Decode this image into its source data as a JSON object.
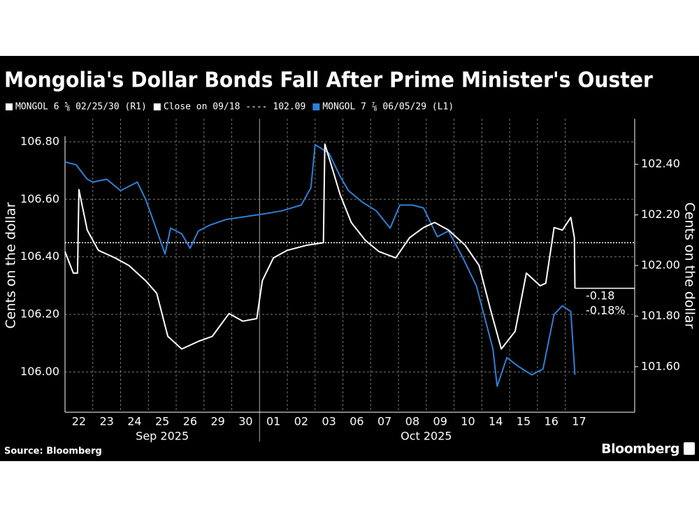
{
  "chart_data": {
    "type": "line",
    "title": "Mongolia's Dollar Bonds Fall After Prime Minister's Ouster",
    "y_label": "Cents on the dollar",
    "y2_label": "Cents on the dollar",
    "source": "Source: Bloomberg",
    "brand": "Bloomberg",
    "xlim": [
      0,
      20.5
    ],
    "xticks": [
      {
        "value": 0.5,
        "label": "22"
      },
      {
        "value": 1.5,
        "label": "23"
      },
      {
        "value": 2.5,
        "label": "24"
      },
      {
        "value": 3.5,
        "label": "25"
      },
      {
        "value": 4.5,
        "label": "26"
      },
      {
        "value": 5.5,
        "label": "29"
      },
      {
        "value": 6.5,
        "label": "30"
      },
      {
        "value": 7.5,
        "label": "01"
      },
      {
        "value": 8.5,
        "label": "02"
      },
      {
        "value": 9.5,
        "label": "03"
      },
      {
        "value": 10.5,
        "label": "06"
      },
      {
        "value": 11.5,
        "label": "07"
      },
      {
        "value": 12.5,
        "label": "08"
      },
      {
        "value": 13.5,
        "label": "09"
      },
      {
        "value": 14.5,
        "label": "10"
      },
      {
        "value": 15.5,
        "label": "14"
      },
      {
        "value": 16.5,
        "label": "15"
      },
      {
        "value": 17.5,
        "label": "16"
      },
      {
        "value": 18.5,
        "label": "17"
      }
    ],
    "xgrid": [
      1,
      2,
      3,
      4,
      5,
      6,
      8,
      9,
      10,
      11,
      12,
      13,
      14,
      15,
      16,
      17,
      18
    ],
    "x_groups": [
      {
        "label": "Sep 2025",
        "from": 0,
        "to": 7
      },
      {
        "label": "Oct 2025",
        "from": 7,
        "to": 19
      }
    ],
    "ylim": [
      105.86,
      106.88
    ],
    "yticks": [
      {
        "value": 106,
        "label": "106.00"
      },
      {
        "value": 106.2,
        "label": "106.20"
      },
      {
        "value": 106.4,
        "label": "106.40"
      },
      {
        "value": 106.6,
        "label": "106.60"
      },
      {
        "value": 106.8,
        "label": "106.80"
      }
    ],
    "y2lim": [
      101.42,
      102.58
    ],
    "y2ticks": [
      {
        "value": 101.6,
        "label": "101.60"
      },
      {
        "value": 101.8,
        "label": "101.80"
      },
      {
        "value": 102,
        "label": "102.00"
      },
      {
        "value": 102.2,
        "label": "102.20"
      },
      {
        "value": 102.4,
        "label": "102.40"
      }
    ],
    "grid": true,
    "series": [
      {
        "name": "MONGOL 6 ⅝ 02/25/30 (R1)",
        "color": "#ffffff",
        "axis": "y2",
        "x": [
          0,
          0.3,
          0.45,
          0.5,
          0.8,
          1.2,
          1.8,
          2.3,
          2.9,
          3.3,
          3.7,
          4.2,
          4.8,
          5.3,
          5.9,
          6.4,
          6.9,
          7.1,
          7.5,
          8.0,
          8.7,
          9.3,
          9.35,
          9.6,
          9.9,
          10.3,
          10.8,
          11.3,
          11.9,
          12.4,
          12.9,
          13.3,
          13.8,
          14.4,
          14.9,
          15.3,
          15.7,
          16.2,
          16.6,
          17.1,
          17.3,
          17.6,
          17.9,
          18.2,
          18.33,
          18.35
        ],
        "values": [
          102.055,
          101.97,
          101.97,
          102.3,
          102.14,
          102.06,
          102.03,
          102.0,
          101.94,
          101.89,
          101.72,
          101.67,
          101.7,
          101.72,
          101.81,
          101.78,
          101.79,
          101.94,
          102.03,
          102.06,
          102.08,
          102.09,
          102.48,
          102.39,
          102.28,
          102.17,
          102.1,
          102.055,
          102.03,
          102.11,
          102.15,
          102.17,
          102.14,
          102.08,
          102.0,
          101.83,
          101.67,
          101.74,
          101.97,
          101.92,
          101.93,
          102.15,
          102.14,
          102.19,
          102.11,
          101.91
        ]
      },
      {
        "name": "MONGOL 7 ⅞ 06/05/29 (L1)",
        "color": "#2f7fd6",
        "axis": "y",
        "x": [
          0,
          0.4,
          0.8,
          1,
          1.5,
          2,
          2.6,
          2.9,
          3.2,
          3.6,
          3.8,
          4.2,
          4.5,
          4.8,
          5.2,
          5.8,
          6.5,
          7.2,
          7.8,
          8.5,
          8.85,
          9.0,
          9.5,
          9.9,
          10.2,
          10.7,
          11.2,
          11.7,
          12.05,
          12.5,
          12.9,
          13.4,
          13.8,
          14.3,
          14.8,
          15.4,
          15.55,
          15.9,
          16.3,
          16.8,
          17.2,
          17.6,
          17.9,
          18.2,
          18.35
        ],
        "values": [
          106.73,
          106.72,
          106.67,
          106.66,
          106.67,
          106.63,
          106.66,
          106.6,
          106.52,
          106.41,
          106.5,
          106.48,
          106.43,
          106.49,
          106.51,
          106.53,
          106.54,
          106.55,
          106.56,
          106.58,
          106.64,
          106.79,
          106.76,
          106.68,
          106.63,
          106.59,
          106.56,
          106.5,
          106.58,
          106.58,
          106.57,
          106.47,
          106.49,
          106.4,
          106.3,
          106.08,
          105.95,
          106.05,
          106.02,
          105.99,
          106.01,
          106.2,
          106.23,
          106.21,
          105.99
        ]
      }
    ],
    "reference_line": {
      "name": "Close on 09/18 ---- 102.09",
      "value": 102.09,
      "axis": "y2"
    },
    "annotations": [
      "-0.18",
      "-0.18%"
    ]
  }
}
